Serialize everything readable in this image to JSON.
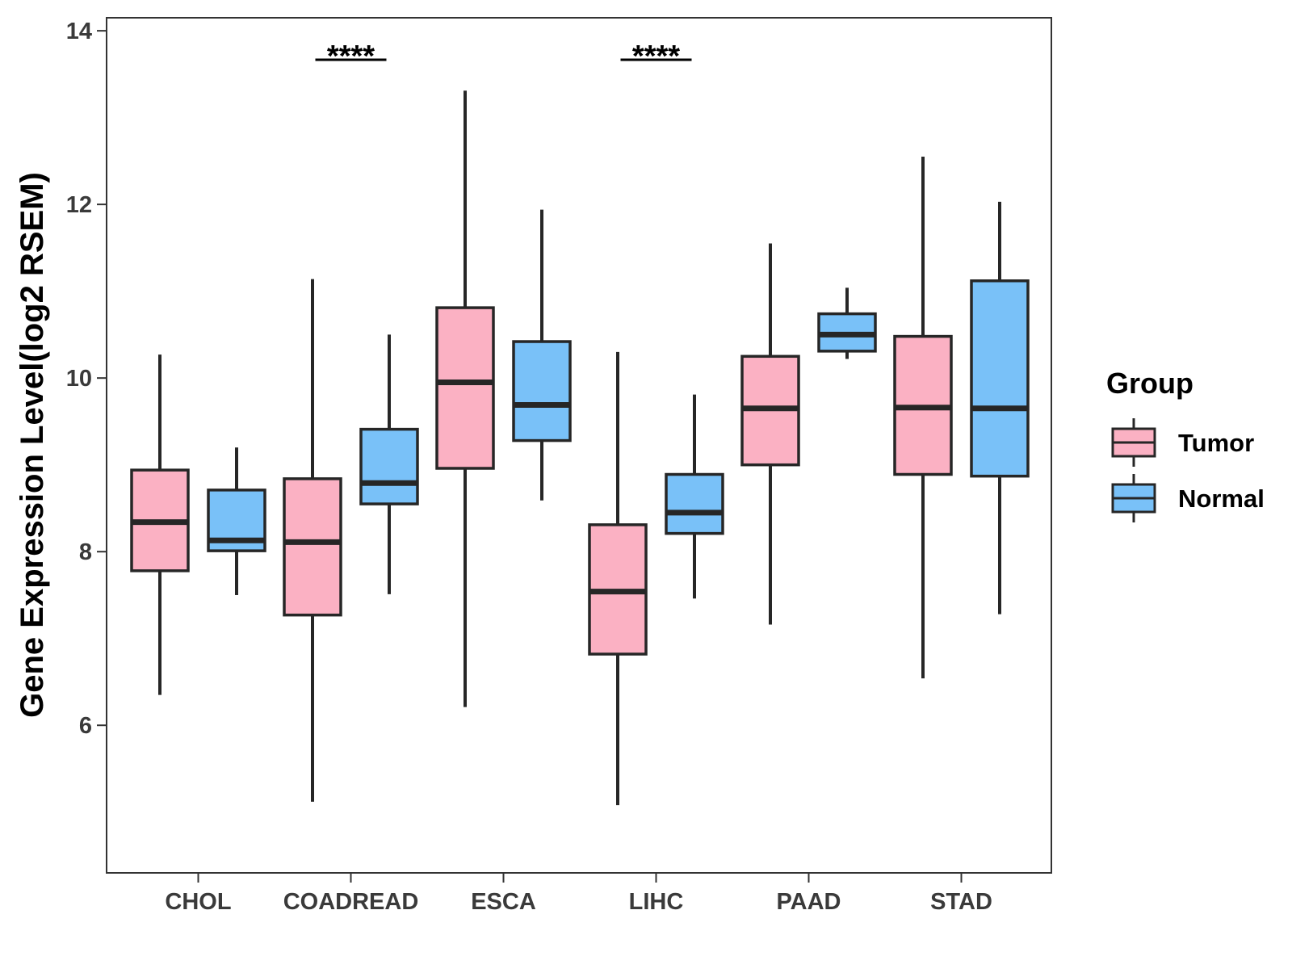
{
  "chart_data": {
    "type": "boxplot",
    "title": "",
    "xlabel": "",
    "ylabel": "Gene Expression Level(log2 RSEM)",
    "ylim": [
      4.3,
      14.15
    ],
    "yticks": [
      6,
      8,
      10,
      12,
      14
    ],
    "ytick_labels": [
      "6",
      "8",
      "10",
      "12",
      "14"
    ],
    "grid": false,
    "categories": [
      "CHOL",
      "COADREAD",
      "ESCA",
      "LIHC",
      "PAAD",
      "STAD"
    ],
    "legend": {
      "title": "Group",
      "position": "right",
      "entries": [
        {
          "label": "Tumor",
          "color": "#FBB1C3"
        },
        {
          "label": "Normal",
          "color": "#79C1F8"
        }
      ]
    },
    "series": [
      {
        "name": "Tumor",
        "color": "#FBB1C3",
        "boxes": [
          {
            "category": "CHOL",
            "whisker_low": 6.35,
            "q1": 7.78,
            "median": 8.34,
            "q3": 8.94,
            "whisker_high": 10.27
          },
          {
            "category": "COADREAD",
            "whisker_low": 5.12,
            "q1": 7.27,
            "median": 8.11,
            "q3": 8.84,
            "whisker_high": 11.14
          },
          {
            "category": "ESCA",
            "whisker_low": 6.21,
            "q1": 8.96,
            "median": 9.95,
            "q3": 10.81,
            "whisker_high": 13.31
          },
          {
            "category": "LIHC",
            "whisker_low": 5.08,
            "q1": 6.82,
            "median": 7.54,
            "q3": 8.31,
            "whisker_high": 10.3
          },
          {
            "category": "PAAD",
            "whisker_low": 7.16,
            "q1": 9.0,
            "median": 9.65,
            "q3": 10.25,
            "whisker_high": 11.55
          },
          {
            "category": "STAD",
            "whisker_low": 6.54,
            "q1": 8.89,
            "median": 9.66,
            "q3": 10.48,
            "whisker_high": 12.55
          }
        ]
      },
      {
        "name": "Normal",
        "color": "#79C1F8",
        "boxes": [
          {
            "category": "CHOL",
            "whisker_low": 7.5,
            "q1": 8.01,
            "median": 8.13,
            "q3": 8.71,
            "whisker_high": 9.2
          },
          {
            "category": "COADREAD",
            "whisker_low": 7.51,
            "q1": 8.55,
            "median": 8.79,
            "q3": 9.41,
            "whisker_high": 10.5
          },
          {
            "category": "ESCA",
            "whisker_low": 8.59,
            "q1": 9.28,
            "median": 9.69,
            "q3": 10.42,
            "whisker_high": 11.94
          },
          {
            "category": "LIHC",
            "whisker_low": 7.46,
            "q1": 8.21,
            "median": 8.45,
            "q3": 8.89,
            "whisker_high": 9.81
          },
          {
            "category": "PAAD",
            "whisker_low": 10.22,
            "q1": 10.31,
            "median": 10.5,
            "q3": 10.74,
            "whisker_high": 11.04
          },
          {
            "category": "STAD",
            "whisker_low": 7.28,
            "q1": 8.87,
            "median": 9.65,
            "q3": 11.12,
            "whisker_high": 12.03
          }
        ]
      }
    ],
    "annotations": [
      {
        "category": "COADREAD",
        "label": "****"
      },
      {
        "category": "LIHC",
        "label": "****"
      }
    ]
  }
}
